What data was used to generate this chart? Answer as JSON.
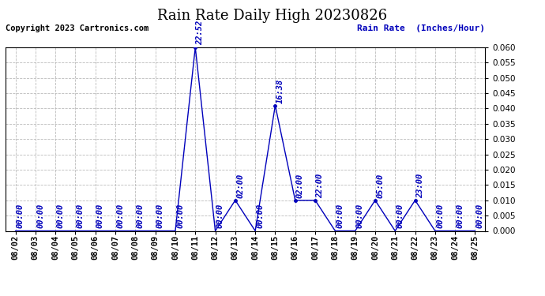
{
  "title": "Rain Rate Daily High 20230826",
  "copyright": "Copyright 2023 Cartronics.com",
  "ylabel": "Rain Rate  (Inches/Hour)",
  "ylim": [
    0.0,
    0.06
  ],
  "yticks": [
    0.0,
    0.005,
    0.01,
    0.015,
    0.02,
    0.025,
    0.03,
    0.035,
    0.04,
    0.045,
    0.05,
    0.055,
    0.06
  ],
  "background_color": "#ffffff",
  "line_color": "#0000bb",
  "grid_color": "#bbbbbb",
  "x_dates": [
    "08/02",
    "08/03",
    "08/04",
    "08/05",
    "08/06",
    "08/07",
    "08/08",
    "08/09",
    "08/10",
    "08/11",
    "08/12",
    "08/13",
    "08/14",
    "08/15",
    "08/16",
    "08/17",
    "08/18",
    "08/19",
    "08/20",
    "08/21",
    "08/22",
    "08/23",
    "08/24",
    "08/25"
  ],
  "y_values": [
    0.0,
    0.0,
    0.0,
    0.0,
    0.0,
    0.0,
    0.0,
    0.0,
    0.0,
    0.06,
    0.0,
    0.01,
    0.0,
    0.041,
    0.01,
    0.01,
    0.0,
    0.0,
    0.01,
    0.0,
    0.01,
    0.0,
    0.0,
    0.0
  ],
  "time_labels": [
    {
      "xi": 0,
      "label": "00:00",
      "value": 0.0
    },
    {
      "xi": 1,
      "label": "00:00",
      "value": 0.0
    },
    {
      "xi": 2,
      "label": "00:00",
      "value": 0.0
    },
    {
      "xi": 3,
      "label": "00:00",
      "value": 0.0
    },
    {
      "xi": 4,
      "label": "00:00",
      "value": 0.0
    },
    {
      "xi": 5,
      "label": "00:00",
      "value": 0.0
    },
    {
      "xi": 6,
      "label": "00:00",
      "value": 0.0
    },
    {
      "xi": 7,
      "label": "00:00",
      "value": 0.0
    },
    {
      "xi": 8,
      "label": "00:00",
      "value": 0.0
    },
    {
      "xi": 9,
      "label": "22:52",
      "value": 0.06
    },
    {
      "xi": 10,
      "label": "00:00",
      "value": 0.0
    },
    {
      "xi": 11,
      "label": "02:00",
      "value": 0.01
    },
    {
      "xi": 12,
      "label": "00:00",
      "value": 0.0
    },
    {
      "xi": 13,
      "label": "16:38",
      "value": 0.041
    },
    {
      "xi": 14,
      "label": "02:00",
      "value": 0.01
    },
    {
      "xi": 15,
      "label": "22:00",
      "value": 0.01
    },
    {
      "xi": 16,
      "label": "00:00",
      "value": 0.0
    },
    {
      "xi": 17,
      "label": "00:00",
      "value": 0.0
    },
    {
      "xi": 18,
      "label": "05:00",
      "value": 0.01
    },
    {
      "xi": 19,
      "label": "00:00",
      "value": 0.0
    },
    {
      "xi": 20,
      "label": "23:00",
      "value": 0.01
    },
    {
      "xi": 21,
      "label": "00:00",
      "value": 0.0
    },
    {
      "xi": 22,
      "label": "00:00",
      "value": 0.0
    },
    {
      "xi": 23,
      "label": "00:00",
      "value": 0.0
    }
  ],
  "title_fontsize": 13,
  "label_fontsize": 8,
  "tick_fontsize": 7.5,
  "copyright_fontsize": 7.5,
  "ylabel_fontsize": 8
}
